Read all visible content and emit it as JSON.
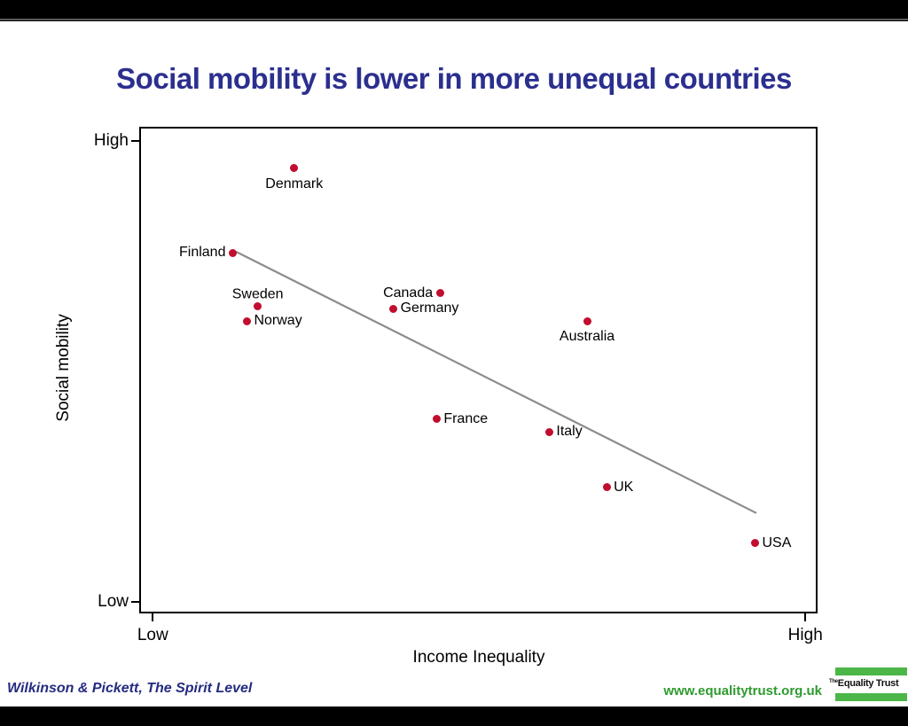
{
  "slide": {
    "title": "Social mobility is lower in more unequal countries",
    "title_color": "#2b2f8e",
    "footer_left": "Wilkinson & Pickett, The Spirit Level",
    "footer_left_color": "#252c80",
    "footer_url": "www.equalitytrust.org.uk",
    "footer_url_color": "#2e9b2e",
    "logo": {
      "prefix": "The",
      "name": "Equality Trust",
      "bar_color": "#4cb648"
    }
  },
  "chart_data": {
    "type": "scatter",
    "title": "Social mobility is lower in more unequal countries",
    "xlabel": "Income Inequality",
    "ylabel": "Social mobility",
    "axis_note": "Qualitative axes labeled Low to High; point coordinates are normalized 0-1 positions read from the plot",
    "x_ticks": [
      {
        "label": "Low",
        "pos": 0.02
      },
      {
        "label": "High",
        "pos": 0.982
      }
    ],
    "y_ticks": [
      {
        "label": "Low",
        "pos": 0.024
      },
      {
        "label": "High",
        "pos": 0.971
      }
    ],
    "point_color": "#c10d2e",
    "grid": false,
    "legend": false,
    "trend_line": {
      "x1": 0.141,
      "y1": 0.745,
      "x2": 0.912,
      "y2": 0.204,
      "color": "#8c8c8c",
      "width": 2.2
    },
    "points": [
      {
        "label": "Denmark",
        "x": 0.227,
        "y": 0.918,
        "label_position": "below"
      },
      {
        "label": "Finland",
        "x": 0.136,
        "y": 0.743,
        "label_position": "left"
      },
      {
        "label": "Sweden",
        "x": 0.173,
        "y": 0.632,
        "label_position": "above"
      },
      {
        "label": "Norway",
        "x": 0.157,
        "y": 0.601,
        "label_position": "right"
      },
      {
        "label": "Canada",
        "x": 0.443,
        "y": 0.659,
        "label_position": "left"
      },
      {
        "label": "Germany",
        "x": 0.374,
        "y": 0.627,
        "label_position": "right"
      },
      {
        "label": "Australia",
        "x": 0.661,
        "y": 0.601,
        "label_position": "below"
      },
      {
        "label": "France",
        "x": 0.438,
        "y": 0.399,
        "label_position": "right"
      },
      {
        "label": "Italy",
        "x": 0.605,
        "y": 0.372,
        "label_position": "right"
      },
      {
        "label": "UK",
        "x": 0.69,
        "y": 0.257,
        "label_position": "right"
      },
      {
        "label": "USA",
        "x": 0.91,
        "y": 0.142,
        "label_position": "right"
      }
    ]
  }
}
